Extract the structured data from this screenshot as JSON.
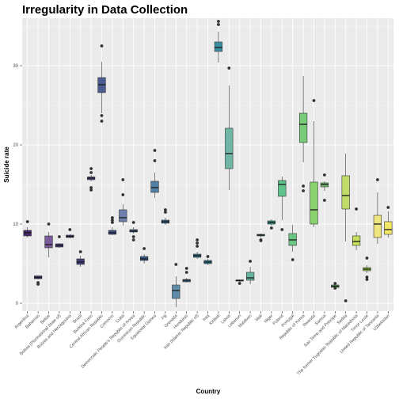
{
  "chart_data": {
    "type": "boxplot",
    "title": "Irregularity in Data Collection",
    "xlabel": "Country",
    "ylabel": "Suicide rate",
    "ylim": [
      -1,
      36
    ],
    "yticks": [
      0,
      10,
      20,
      30
    ],
    "grid": true,
    "legend": "none",
    "series": [
      {
        "category": "Argentina",
        "min": 8.3,
        "q1": 8.5,
        "median": 8.9,
        "q3": 9.2,
        "max": 9.6,
        "outliers": [
          10.3
        ],
        "color": "#47296e"
      },
      {
        "category": "Bahamas",
        "min": 3.0,
        "q1": 3.1,
        "median": 3.25,
        "q3": 3.45,
        "max": 3.5,
        "outliers": [
          2.6,
          2.4
        ],
        "color": "#462e73"
      },
      {
        "category": "Belize",
        "min": 5.8,
        "q1": 7.0,
        "median": 7.4,
        "q3": 8.5,
        "max": 9.0,
        "outliers": [
          10.0
        ],
        "color": "#7a5a9b"
      },
      {
        "category": "Bolivia (Plurinational State of)",
        "min": 7.0,
        "q1": 7.1,
        "median": 7.3,
        "q3": 7.5,
        "max": 7.6,
        "outliers": [
          8.4
        ],
        "color": "#453577"
      },
      {
        "category": "Bosnia and Herzegovina",
        "min": 8.2,
        "q1": 8.3,
        "median": 8.45,
        "q3": 8.6,
        "max": 8.7,
        "outliers": [
          9.3
        ],
        "color": "#43397a"
      },
      {
        "category": "Brazil",
        "min": 4.6,
        "q1": 4.9,
        "median": 5.2,
        "q3": 5.6,
        "max": 6.0,
        "outliers": [
          6.5
        ],
        "color": "#433f7c"
      },
      {
        "category": "Burkina Faso",
        "min": 15.4,
        "q1": 15.6,
        "median": 15.8,
        "q3": 15.95,
        "max": 16.2,
        "outliers": [
          17.0,
          14.6,
          14.3,
          16.5
        ],
        "color": "#41447f"
      },
      {
        "category": "Central African Republic",
        "min": 24.0,
        "q1": 26.6,
        "median": 27.6,
        "q3": 28.5,
        "max": 30.5,
        "outliers": [
          32.5,
          23.7,
          23.0
        ],
        "color": "#4a5c91"
      },
      {
        "category": "Comoros",
        "min": 8.6,
        "q1": 8.7,
        "median": 8.9,
        "q3": 9.2,
        "max": 9.6,
        "outliers": [
          10.2,
          10.5,
          10.8
        ],
        "color": "#3f4d85"
      },
      {
        "category": "Cuba",
        "min": 9.8,
        "q1": 10.3,
        "median": 10.8,
        "q3": 11.8,
        "max": 12.5,
        "outliers": [
          13.7,
          15.6
        ],
        "color": "#6f80ae"
      },
      {
        "category": "Democratic People's Republic of Korea",
        "min": 8.8,
        "q1": 9.0,
        "median": 9.1,
        "q3": 9.3,
        "max": 9.6,
        "outliers": [
          10.2,
          8.4,
          8.0
        ],
        "color": "#3a5788"
      },
      {
        "category": "Dominican Republic",
        "min": 5.0,
        "q1": 5.4,
        "median": 5.6,
        "q3": 5.9,
        "max": 6.2,
        "outliers": [
          6.9
        ],
        "color": "#385b89"
      },
      {
        "category": "Equatorial Guinea",
        "min": 13.3,
        "q1": 14.0,
        "median": 14.6,
        "q3": 15.4,
        "max": 16.5,
        "outliers": [
          18.0,
          19.3
        ],
        "color": "#527fa3"
      },
      {
        "category": "Fiji",
        "min": 9.9,
        "q1": 10.1,
        "median": 10.3,
        "q3": 10.5,
        "max": 10.8,
        "outliers": [
          11.5,
          11.8
        ],
        "color": "#35638c"
      },
      {
        "category": "Grenada",
        "min": -0.5,
        "q1": 0.6,
        "median": 1.6,
        "q3": 2.3,
        "max": 3.4,
        "outliers": [
          4.9
        ],
        "color": "#5f8ca8"
      },
      {
        "category": "Honduras",
        "min": 2.6,
        "q1": 2.7,
        "median": 2.9,
        "q3": 3.0,
        "max": 3.2,
        "outliers": [
          3.9,
          4.4
        ],
        "color": "#316d8f"
      },
      {
        "category": "Iran (Islamic Republic of)",
        "min": 5.6,
        "q1": 5.8,
        "median": 6.0,
        "q3": 6.2,
        "max": 6.5,
        "outliers": [
          7.2,
          7.6,
          8.0
        ],
        "color": "#2f718f"
      },
      {
        "category": "Iraq",
        "min": 4.8,
        "q1": 5.0,
        "median": 5.2,
        "q3": 5.4,
        "max": 5.6,
        "outliers": [
          5.9
        ],
        "color": "#2d7590"
      },
      {
        "category": "Kiribati",
        "min": 30.4,
        "q1": 31.8,
        "median": 32.3,
        "q3": 33.0,
        "max": 34.3,
        "outliers": [
          35.2,
          35.6
        ],
        "color": "#3a8fa0"
      },
      {
        "category": "Latvia",
        "min": 14.3,
        "q1": 17.0,
        "median": 18.9,
        "q3": 22.1,
        "max": 27.5,
        "outliers": [
          29.7
        ],
        "color": "#70b6a5"
      },
      {
        "category": "Lebanon",
        "min": 2.7,
        "q1": 2.8,
        "median": 2.85,
        "q3": 2.95,
        "max": 3.0,
        "outliers": [
          2.5
        ],
        "color": "#2c8990"
      },
      {
        "category": "Maldives",
        "min": 2.4,
        "q1": 2.9,
        "median": 3.2,
        "q3": 3.9,
        "max": 4.6,
        "outliers": [
          5.3
        ],
        "color": "#65b4a0"
      },
      {
        "category": "Mali",
        "min": 8.3,
        "q1": 8.5,
        "median": 8.6,
        "q3": 8.7,
        "max": 8.8,
        "outliers": [
          8.0,
          7.9
        ],
        "color": "#2b958c"
      },
      {
        "category": "Niger",
        "min": 9.8,
        "q1": 10.0,
        "median": 10.2,
        "q3": 10.4,
        "max": 10.6,
        "outliers": [
          9.5
        ],
        "color": "#2f9a89"
      },
      {
        "category": "Poland",
        "min": 10.5,
        "q1": 13.5,
        "median": 15.0,
        "q3": 15.5,
        "max": 16.0,
        "outliers": [
          9.3
        ],
        "color": "#5ec28b"
      },
      {
        "category": "Portugal",
        "min": 6.5,
        "q1": 7.3,
        "median": 8.0,
        "q3": 8.8,
        "max": 9.9,
        "outliers": [
          5.5
        ],
        "color": "#6cc683"
      },
      {
        "category": "Republic of Korea",
        "min": 17.8,
        "q1": 20.3,
        "median": 22.6,
        "q3": 24.0,
        "max": 28.7,
        "outliers": [
          14.8,
          14.2
        ],
        "color": "#77cc7a"
      },
      {
        "category": "Rwanda",
        "min": 9.6,
        "q1": 10.0,
        "median": 11.8,
        "q3": 15.3,
        "max": 23.0,
        "outliers": [
          25.6
        ],
        "color": "#8bd16f"
      },
      {
        "category": "Samoa",
        "min": 14.2,
        "q1": 14.7,
        "median": 15.0,
        "q3": 15.2,
        "max": 15.4,
        "outliers": [
          16.2,
          13.0
        ],
        "color": "#6ebd6a"
      },
      {
        "category": "Sao Tome and Principe",
        "min": 1.8,
        "q1": 2.0,
        "median": 2.15,
        "q3": 2.3,
        "max": 2.4,
        "outliers": [
          2.5,
          1.9
        ],
        "color": "#5fb55f"
      },
      {
        "category": "Serbia",
        "min": 7.8,
        "q1": 11.9,
        "median": 13.6,
        "q3": 16.1,
        "max": 18.9,
        "outliers": [
          0.3
        ],
        "color": "#c0dd6a"
      },
      {
        "category": "The former Yugoslav Republic of Macedonia",
        "min": 6.7,
        "q1": 7.3,
        "median": 7.8,
        "q3": 8.5,
        "max": 9.0,
        "outliers": [
          11.9
        ],
        "color": "#c4df5c"
      },
      {
        "category": "Timor-Leste",
        "min": 3.8,
        "q1": 4.1,
        "median": 4.3,
        "q3": 4.5,
        "max": 4.8,
        "outliers": [
          3.3,
          3.0,
          5.7
        ],
        "color": "#98cc44"
      },
      {
        "category": "United Republic of Tanzania",
        "min": 7.5,
        "q1": 8.3,
        "median": 10.0,
        "q3": 11.1,
        "max": 14.0,
        "outliers": [
          15.6
        ],
        "color": "#efe57f"
      },
      {
        "category": "Uzbekistan",
        "min": 8.3,
        "q1": 8.7,
        "median": 9.3,
        "q3": 10.3,
        "max": 11.6,
        "outliers": [
          12.1
        ],
        "color": "#f5e767"
      }
    ]
  }
}
